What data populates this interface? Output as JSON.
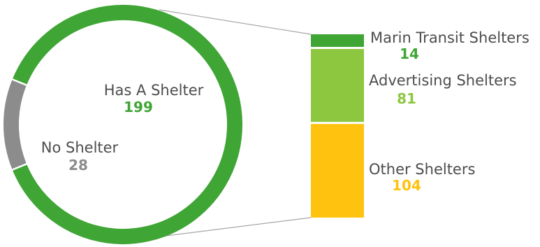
{
  "chart_data": {
    "type": "pie",
    "donut": {
      "slices": [
        {
          "label": "Has A Shelter",
          "value": 199,
          "color": "#3fa535"
        },
        {
          "label": "No Shelter",
          "value": 28,
          "color": "#8c8c8c"
        }
      ]
    },
    "breakdown": {
      "of": "Has A Shelter",
      "categories": [
        {
          "label": "Marin Transit Shelters",
          "value": 14,
          "color": "#3fa535"
        },
        {
          "label": "Advertising Shelters",
          "value": 81,
          "color": "#8dc63f"
        },
        {
          "label": "Other Shelters",
          "value": 104,
          "color": "#ffc20e"
        }
      ]
    },
    "connector_color": "#a6a6a6"
  }
}
